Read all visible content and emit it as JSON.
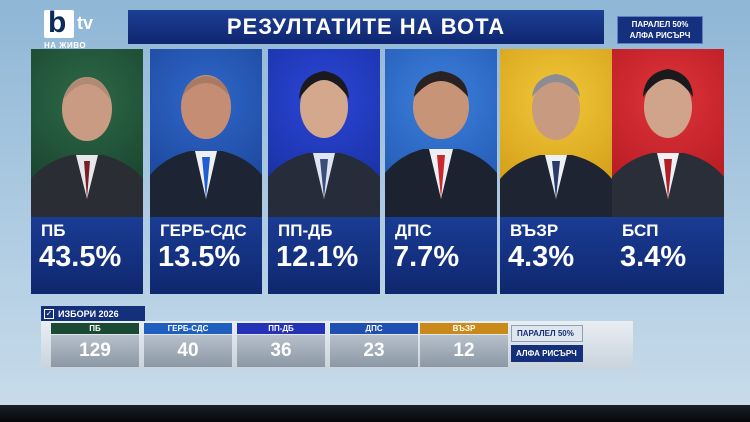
{
  "logo": {
    "brand_letter": "b",
    "brand_suffix": "tv",
    "live_label": "НА ЖИВО"
  },
  "header": {
    "title": "РЕЗУЛТАТИТЕ НА ВОТА"
  },
  "poll_source": {
    "line1": "ПАРАЛЕЛ 50%",
    "line2": "АЛФА РИСЪРЧ"
  },
  "results": [
    {
      "party": "ПБ",
      "percent": "43.5%",
      "color": "#1f5a3a"
    },
    {
      "party": "ГЕРБ-СДС",
      "percent": "13.5%",
      "color": "#1a4fb0"
    },
    {
      "party": "ПП-ДБ",
      "percent": "12.1%",
      "color": "#1f3fbf"
    },
    {
      "party": "ДПС",
      "percent": "7.7%",
      "color": "#2a68c8"
    },
    {
      "party": "ВЪЗР",
      "percent": "4.3%",
      "color": "#e0b21a"
    },
    {
      "party": "БСП",
      "percent": "3.4%",
      "color": "#c81f26"
    }
  ],
  "seats": {
    "title": "ИЗБОРИ 2026",
    "items": [
      {
        "party": "ПБ",
        "value": "129",
        "color": "#1a4a34"
      },
      {
        "party": "ГЕРБ-СДС",
        "value": "40",
        "color": "#1f5fc0"
      },
      {
        "party": "ПП-ДБ",
        "value": "36",
        "color": "#2432b8"
      },
      {
        "party": "ДПС",
        "value": "23",
        "color": "#1f4fb0"
      },
      {
        "party": "ВЪЗР",
        "value": "12",
        "color": "#c98a1a"
      }
    ],
    "poll_line1": "ПАРАЛЕЛ 50%",
    "poll_line2": "АЛФА РИСЪРЧ"
  }
}
